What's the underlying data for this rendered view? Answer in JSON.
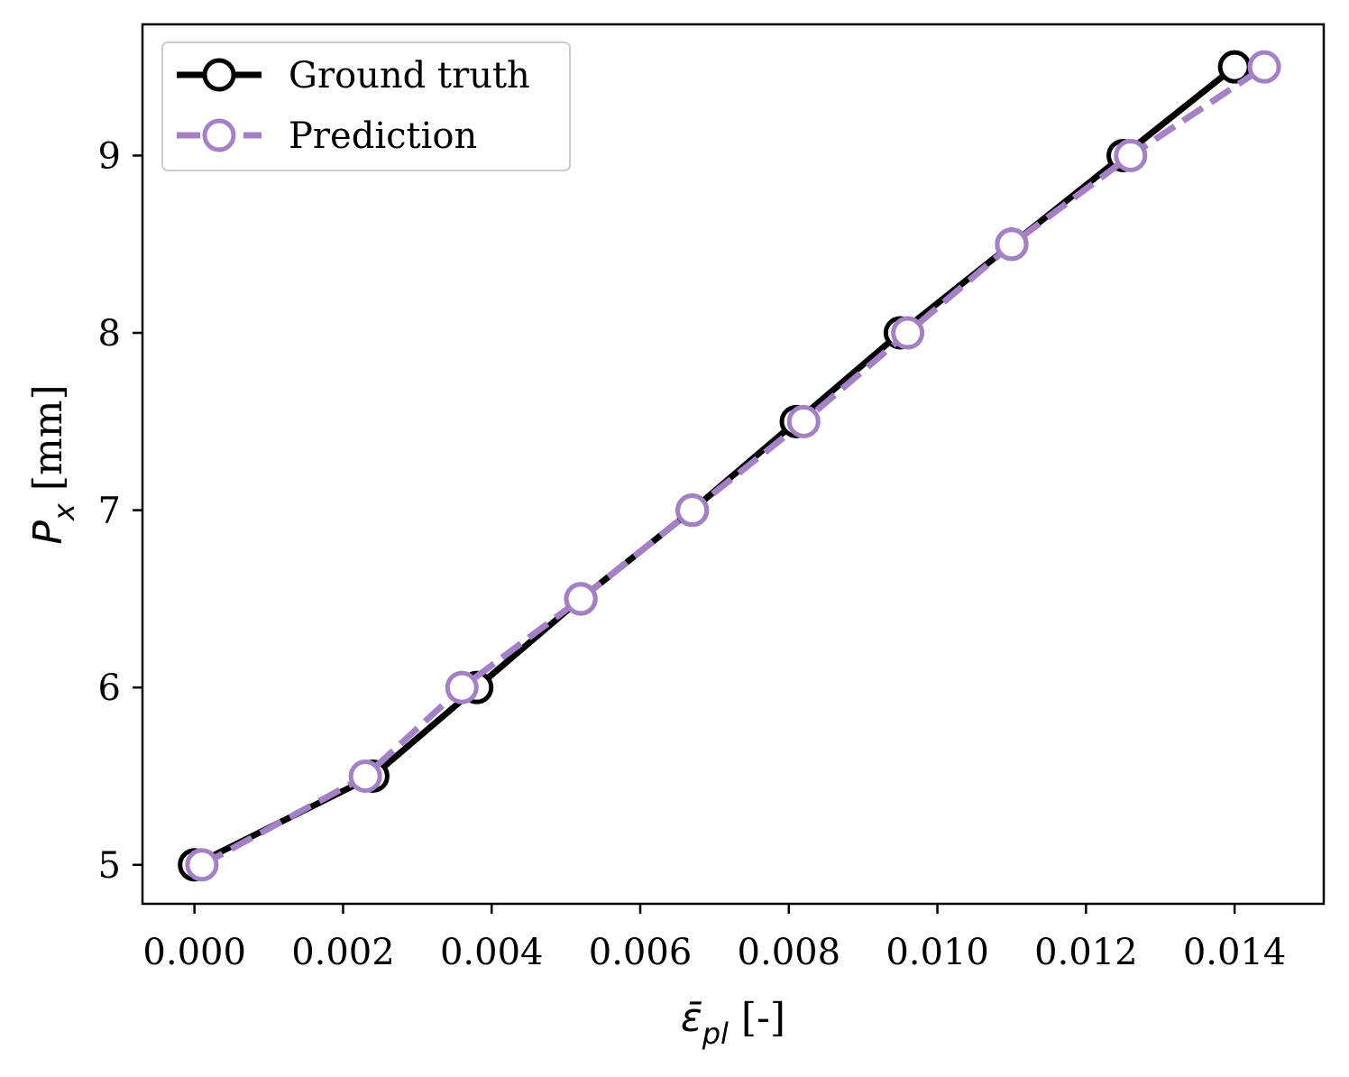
{
  "chart_data": {
    "type": "line",
    "xlabel": {
      "symbol": "ε̄",
      "subscript": "pl",
      "unit": " [-]"
    },
    "ylabel": {
      "symbol": "P",
      "subscript": "x",
      "unit": " [mm]"
    },
    "xlim": [
      -0.0007,
      0.0152
    ],
    "ylim": [
      4.78,
      9.74
    ],
    "xticks": [
      0.0,
      0.002,
      0.004,
      0.006,
      0.008,
      0.01,
      0.012,
      0.014
    ],
    "xtick_labels": [
      "0.000",
      "0.002",
      "0.004",
      "0.006",
      "0.008",
      "0.010",
      "0.012",
      "0.014"
    ],
    "yticks": [
      5,
      6,
      7,
      8,
      9
    ],
    "ytick_labels": [
      "5",
      "6",
      "7",
      "8",
      "9"
    ],
    "grid": false,
    "legend_position": "top-left",
    "series": [
      {
        "name": "Ground truth",
        "color": "#000000",
        "line_style": "solid",
        "marker": "open-circle",
        "x": [
          0.0,
          0.0024,
          0.0038,
          0.0052,
          0.0067,
          0.0081,
          0.0095,
          0.011,
          0.0125,
          0.014
        ],
        "y": [
          5.0,
          5.5,
          6.0,
          6.5,
          7.0,
          7.5,
          8.0,
          8.5,
          9.0,
          9.5
        ]
      },
      {
        "name": "Prediction",
        "color": "#a481c4",
        "line_style": "dashed",
        "marker": "open-circle",
        "x": [
          0.0001,
          0.0023,
          0.0036,
          0.0052,
          0.0067,
          0.0082,
          0.0096,
          0.011,
          0.0126,
          0.0144
        ],
        "y": [
          5.0,
          5.5,
          6.0,
          6.5,
          7.0,
          7.5,
          8.0,
          8.5,
          9.0,
          9.5
        ]
      }
    ]
  }
}
